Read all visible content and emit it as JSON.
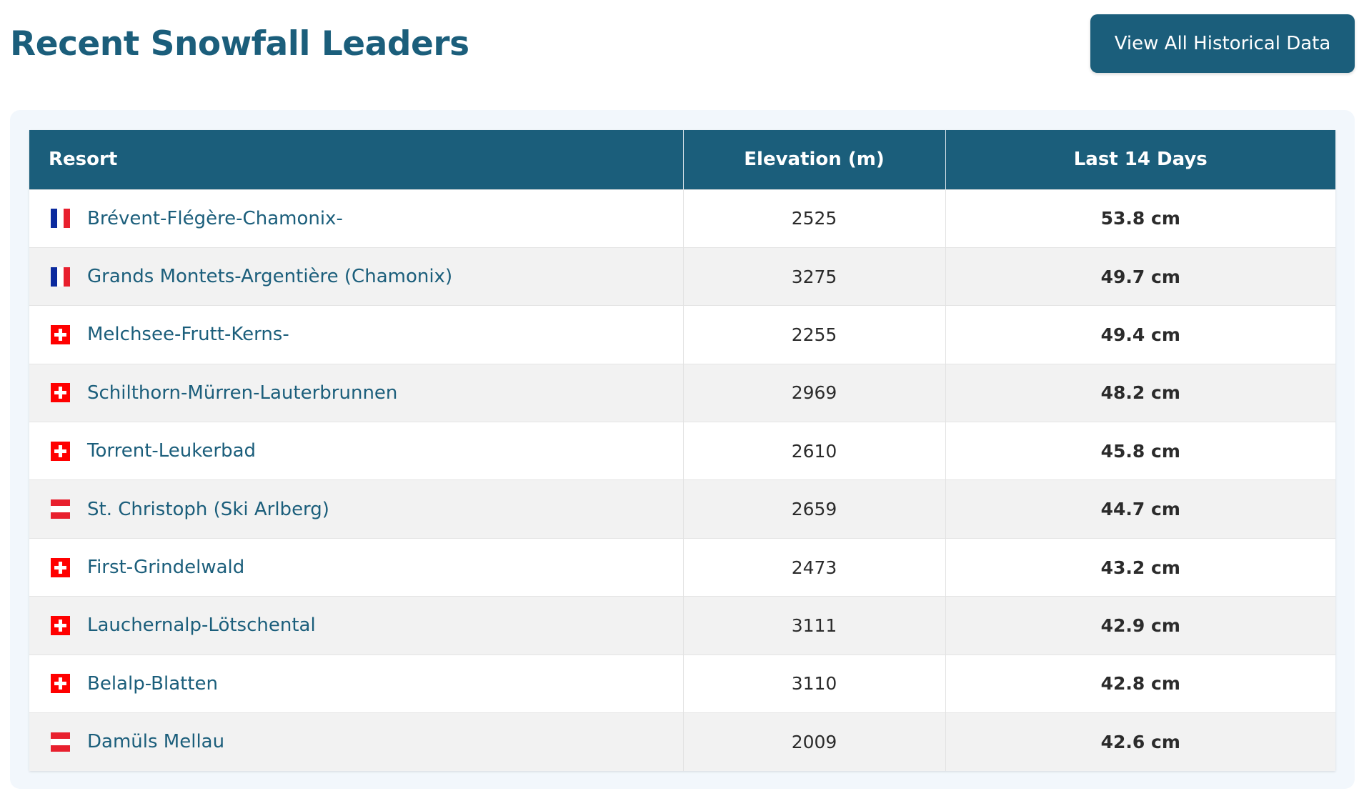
{
  "header": {
    "title": "Recent Snowfall Leaders",
    "view_all_label": "View All Historical Data"
  },
  "table": {
    "columns": [
      "Resort",
      "Elevation (m)",
      "Last 14 Days"
    ],
    "rows": [
      {
        "flag": "france-flag-icon",
        "resort": "Brévent-Flégère-Chamonix-",
        "elevation": "2525",
        "snow": "53.8 cm"
      },
      {
        "flag": "france-flag-icon",
        "resort": "Grands Montets-Argentière (Chamonix)",
        "elevation": "3275",
        "snow": "49.7 cm"
      },
      {
        "flag": "switzerland-flag-icon",
        "resort": "Melchsee-Frutt-Kerns-",
        "elevation": "2255",
        "snow": "49.4 cm"
      },
      {
        "flag": "switzerland-flag-icon",
        "resort": "Schilthorn-Mürren-Lauterbrunnen",
        "elevation": "2969",
        "snow": "48.2 cm"
      },
      {
        "flag": "switzerland-flag-icon",
        "resort": "Torrent-Leukerbad",
        "elevation": "2610",
        "snow": "45.8 cm"
      },
      {
        "flag": "austria-flag-icon",
        "resort": "St. Christoph (Ski Arlberg)",
        "elevation": "2659",
        "snow": "44.7 cm"
      },
      {
        "flag": "switzerland-flag-icon",
        "resort": "First-Grindelwald",
        "elevation": "2473",
        "snow": "43.2 cm"
      },
      {
        "flag": "switzerland-flag-icon",
        "resort": "Lauchernalp-Lötschental",
        "elevation": "3111",
        "snow": "42.9 cm"
      },
      {
        "flag": "switzerland-flag-icon",
        "resort": "Belalp-Blatten",
        "elevation": "3110",
        "snow": "42.8 cm"
      },
      {
        "flag": "austria-flag-icon",
        "resort": "Damüls Mellau",
        "elevation": "2009",
        "snow": "42.6 cm"
      }
    ]
  },
  "colors": {
    "primary": "#1b5e7b",
    "snow_value": "#2e86ab",
    "card_background": "#f2f7fc",
    "row_stripe": "#f2f2f2"
  }
}
